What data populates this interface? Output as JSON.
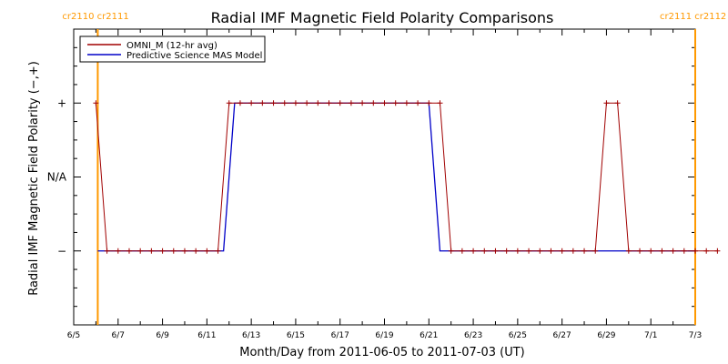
{
  "chart_data": {
    "type": "line",
    "title": "Radial IMF Magnetic Field Polarity Comparisons",
    "xlabel": "Month/Day from 2011-06-05 to 2011-07-03 (UT)",
    "ylabel": "Radial IMF Magnetic Field Polarity (−,+)",
    "x_start": "2011-06-05",
    "x_end": "2011-07-03",
    "xlim": [
      "2011-06-05",
      "2011-07-03"
    ],
    "ylim": [
      -2,
      2
    ],
    "x_tick_labels": [
      "6/5",
      "6/7",
      "6/9",
      "6/11",
      "6/13",
      "6/15",
      "6/17",
      "6/19",
      "6/21",
      "6/23",
      "6/25",
      "6/27",
      "6/29",
      "7/1",
      "7/3"
    ],
    "y_ticks": [
      {
        "value": 1,
        "label": "+"
      },
      {
        "value": 0,
        "label": "N/A"
      },
      {
        "value": -1,
        "label": "−"
      }
    ],
    "legend": {
      "placement": "top-left",
      "entries": [
        {
          "label": "OMNI_M (12-hr avg)",
          "color": "#a00000"
        },
        {
          "label": "Predictive Science MAS Model",
          "color": "#0000c8"
        }
      ]
    },
    "carrington_markers": [
      {
        "x": "2011-06-06 02:00",
        "label": "cr2110 cr2111",
        "color": "#ff9900"
      },
      {
        "x": "2011-07-03 00:00",
        "label": "cr2111 cr2112",
        "color": "#ff9900"
      }
    ],
    "series": [
      {
        "name": "OMNI_M (12-hr avg)",
        "color": "#a00000",
        "marker": "+",
        "step_days": 0.5,
        "start": "2011-06-06 00:00",
        "values": [
          1,
          -1,
          -1,
          -1,
          -1,
          -1,
          -1,
          -1,
          -1,
          -1,
          -1,
          -1,
          1,
          1,
          1,
          1,
          1,
          1,
          1,
          1,
          1,
          1,
          1,
          1,
          1,
          1,
          1,
          1,
          1,
          1,
          1,
          1,
          -1,
          -1,
          -1,
          -1,
          -1,
          -1,
          -1,
          -1,
          -1,
          -1,
          -1,
          -1,
          -1,
          -1,
          1,
          1,
          -1,
          -1,
          -1,
          -1,
          -1,
          -1,
          -1,
          -1,
          -1
        ]
      },
      {
        "name": "Predictive Science MAS Model",
        "color": "#0000c8",
        "points": [
          [
            "2011-06-06 02:00",
            -1
          ],
          [
            "2011-06-11 18:00",
            -1
          ],
          [
            "2011-06-12 06:00",
            1
          ],
          [
            "2011-06-21 00:00",
            1
          ],
          [
            "2011-06-21 12:00",
            -1
          ],
          [
            "2011-07-03 00:00",
            -1
          ]
        ]
      }
    ]
  }
}
